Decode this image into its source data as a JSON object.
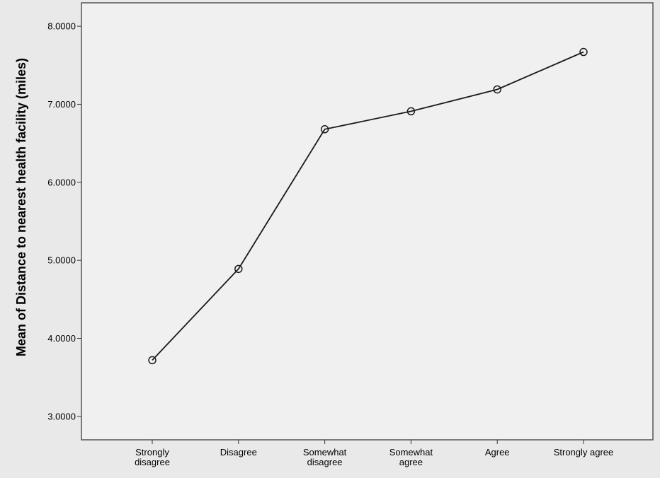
{
  "chart_data": {
    "type": "line",
    "title": "",
    "xlabel": "",
    "ylabel": "Mean of Distance to nearest health facility (miles)",
    "categories": [
      [
        "Strongly",
        "disagree"
      ],
      [
        "Disagree"
      ],
      [
        "Somewhat",
        "disagree"
      ],
      [
        "Somewhat",
        "agree"
      ],
      [
        "Agree"
      ],
      [
        "Strongly agree"
      ]
    ],
    "values": [
      3.72,
      4.89,
      6.68,
      6.91,
      7.19,
      7.67
    ],
    "ylim": [
      2.7,
      8.3
    ],
    "yticks": [
      "3.0000",
      "4.0000",
      "5.0000",
      "6.0000",
      "7.0000",
      "8.0000"
    ],
    "ytick_values": [
      3,
      4,
      5,
      6,
      7,
      8
    ],
    "grid": false,
    "colors": {
      "line": "#1a1a1a",
      "plot_background": "#f0f0f0",
      "outer_background": "#e9e9e9",
      "frame": "#555555"
    }
  }
}
